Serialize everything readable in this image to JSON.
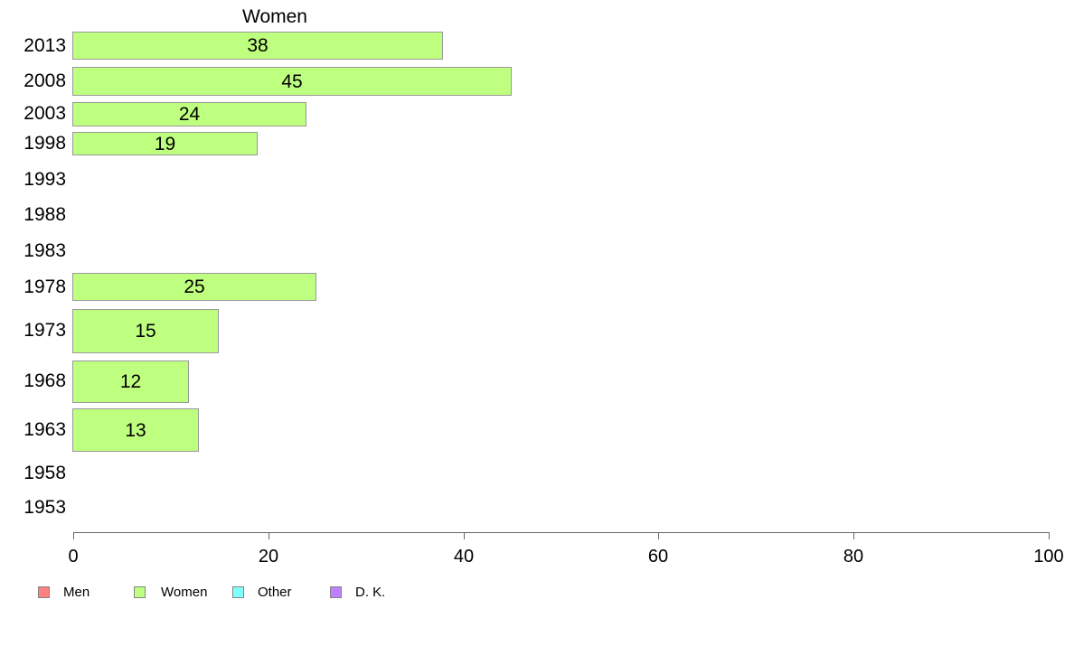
{
  "chart_data": {
    "type": "bar",
    "orientation": "horizontal",
    "title": "Women",
    "categories": [
      "2013",
      "2008",
      "2003",
      "1998",
      "1993",
      "1988",
      "1983",
      "1978",
      "1973",
      "1968",
      "1963",
      "1958",
      "1953"
    ],
    "series": [
      {
        "name": "Women",
        "color": "#BFFF80",
        "values": [
          38,
          45,
          24,
          19,
          null,
          null,
          null,
          25,
          15,
          12,
          13,
          null,
          null
        ]
      }
    ],
    "value_labels_shown": true,
    "xlabel": "",
    "ylabel": "",
    "xlim": [
      0,
      100
    ],
    "x_ticks": [
      "0",
      "20",
      "40",
      "60",
      "80",
      "100"
    ],
    "grid": false,
    "colors": {
      "bar_border": "#999999",
      "axis": "#666666",
      "text": "#000000",
      "background": "#ffffff"
    },
    "legend": {
      "position": "bottom-left",
      "entries": [
        {
          "label": "Men",
          "color": "#FF8080"
        },
        {
          "label": "Women",
          "color": "#BFFF80"
        },
        {
          "label": "Other",
          "color": "#80FFFF"
        },
        {
          "label": "D. K.",
          "color": "#BF80FF"
        }
      ]
    }
  }
}
